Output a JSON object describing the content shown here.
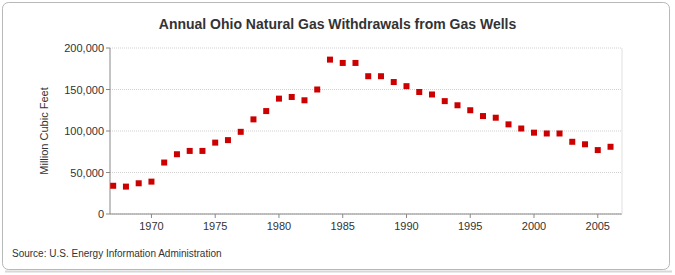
{
  "chart_data": {
    "type": "scatter",
    "title": "Annual Ohio Natural Gas Withdrawals from Gas Wells",
    "y_label": "Million Cubic Feet",
    "source": "Source: U.S. Energy Information Administration",
    "x": [
      1967,
      1968,
      1969,
      1970,
      1971,
      1972,
      1973,
      1974,
      1975,
      1976,
      1977,
      1978,
      1979,
      1980,
      1981,
      1982,
      1983,
      1984,
      1985,
      1986,
      1987,
      1988,
      1989,
      1990,
      1991,
      1992,
      1993,
      1994,
      1995,
      1996,
      1997,
      1998,
      1999,
      2000,
      2001,
      2002,
      2003,
      2004,
      2005,
      2006
    ],
    "values": [
      34000,
      33000,
      37000,
      39000,
      62000,
      72000,
      76000,
      76000,
      86000,
      89000,
      99000,
      114000,
      124000,
      139000,
      141000,
      137000,
      150000,
      186000,
      182000,
      182000,
      166000,
      166000,
      159000,
      154000,
      147000,
      144000,
      136000,
      131000,
      125000,
      118000,
      116000,
      108000,
      103000,
      98000,
      97000,
      97000,
      87000,
      84000,
      77000,
      81000
    ],
    "color": "#cc0000",
    "marker": "square",
    "xlim": [
      1966.75,
      2006.9
    ],
    "xticks": [
      1970,
      1975,
      1980,
      1985,
      1990,
      1995,
      2000,
      2005
    ],
    "ylim": [
      0,
      200000
    ],
    "yticks": [
      0,
      {
        "value": 50000,
        "label": "50,000"
      },
      {
        "value": 100000,
        "label": "100,000"
      },
      {
        "value": 150000,
        "label": "150,000"
      },
      {
        "value": 200000,
        "label": "200,000"
      }
    ],
    "grid": true
  }
}
